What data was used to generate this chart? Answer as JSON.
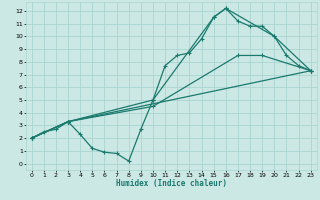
{
  "xlabel": "Humidex (Indice chaleur)",
  "bg_color": "#cce8e5",
  "grid_color": "#aad4d0",
  "line_color": "#1a7a6e",
  "xlim": [
    -0.5,
    23.5
  ],
  "ylim": [
    -0.5,
    12.7
  ],
  "xticks": [
    0,
    1,
    2,
    3,
    4,
    5,
    6,
    7,
    8,
    9,
    10,
    11,
    12,
    13,
    14,
    15,
    16,
    17,
    18,
    19,
    20,
    21,
    22,
    23
  ],
  "yticks": [
    0,
    1,
    2,
    3,
    4,
    5,
    6,
    7,
    8,
    9,
    10,
    11,
    12
  ],
  "line_zigzag": {
    "x": [
      0,
      1,
      2,
      3,
      4,
      5,
      6,
      7,
      8,
      9,
      10,
      11,
      12,
      13,
      14,
      15,
      16,
      17,
      18,
      19,
      20,
      21,
      22,
      23
    ],
    "y": [
      2.0,
      2.5,
      2.7,
      3.3,
      2.3,
      1.2,
      0.9,
      0.8,
      0.2,
      2.7,
      5.0,
      7.7,
      8.5,
      8.7,
      9.8,
      11.5,
      12.2,
      11.2,
      10.8,
      10.8,
      10.0,
      8.5,
      7.7,
      7.3
    ]
  },
  "line_top": {
    "x": [
      0,
      3,
      10,
      15,
      16,
      20,
      23
    ],
    "y": [
      2.0,
      3.3,
      5.0,
      11.5,
      12.2,
      10.0,
      7.3
    ]
  },
  "line_mid": {
    "x": [
      0,
      3,
      10,
      17,
      19,
      23
    ],
    "y": [
      2.0,
      3.3,
      4.5,
      8.5,
      8.5,
      7.3
    ]
  },
  "line_bot": {
    "x": [
      0,
      3,
      23
    ],
    "y": [
      2.0,
      3.3,
      7.3
    ]
  }
}
